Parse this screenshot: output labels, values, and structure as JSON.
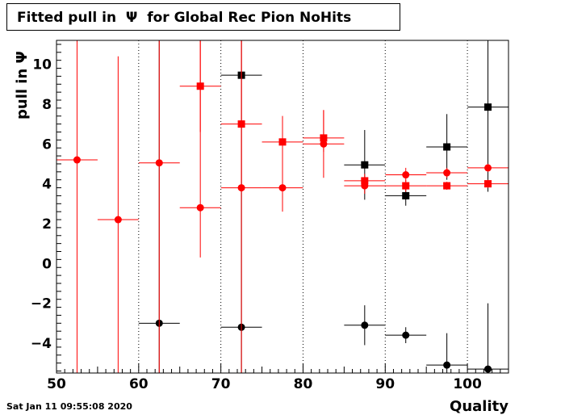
{
  "title": "Fitted pull in  Ψ  for Global Rec Pion NoHits",
  "timestamp": "Sat Jan 11 09:55:08 2020",
  "colors": {
    "black": "#000000",
    "red": "#ff0000"
  },
  "chart_data": {
    "type": "scatter",
    "title": "Fitted pull in  Ψ  for Global Rec Pion NoHits",
    "xlabel": "Quality",
    "ylabel": "pull in  Ψ",
    "xlim": [
      50,
      105
    ],
    "ylim": [
      -5.5,
      11.2
    ],
    "xticks": [
      50,
      60,
      70,
      80,
      90,
      100
    ],
    "xtick_labels": [
      "50",
      "60",
      "70",
      "80",
      "90",
      "100"
    ],
    "yticks": [
      -4,
      -2,
      0,
      2,
      4,
      6,
      8,
      10
    ],
    "ytick_labels": [
      "−4",
      "−2",
      "0",
      "2",
      "4",
      "6",
      "8",
      "10"
    ],
    "grid": true,
    "series": [
      {
        "color": "#000000",
        "marker": "square",
        "points": [
          {
            "x": 72.5,
            "y": 9.45,
            "xerr": 2.5,
            "ylo": -5.5,
            "yhi": 11.2
          },
          {
            "x": 87.5,
            "y": 4.95,
            "xerr": 2.5,
            "ylo": 3.2,
            "yhi": 6.7
          },
          {
            "x": 92.5,
            "y": 3.4,
            "xerr": 2.5,
            "ylo": 2.9,
            "yhi": 3.9
          },
          {
            "x": 97.5,
            "y": 5.85,
            "xerr": 2.5,
            "ylo": 4.2,
            "yhi": 7.5
          },
          {
            "x": 102.5,
            "y": 7.85,
            "xerr": 2.5,
            "ylo": 3.6,
            "yhi": 11.2
          }
        ]
      },
      {
        "color": "#000000",
        "marker": "circle",
        "points": [
          {
            "x": 62.5,
            "y": -3.0,
            "xerr": 2.5,
            "ylo": -5.5,
            "yhi": 11.2
          },
          {
            "x": 72.5,
            "y": -3.2,
            "xerr": 2.5,
            "ylo": -5.5,
            "yhi": 11.2
          },
          {
            "x": 87.5,
            "y": -3.1,
            "xerr": 2.5,
            "ylo": -4.1,
            "yhi": -2.1
          },
          {
            "x": 92.5,
            "y": -3.6,
            "xerr": 2.5,
            "ylo": -4.0,
            "yhi": -3.2
          },
          {
            "x": 97.5,
            "y": -5.1,
            "xerr": 2.5,
            "ylo": -5.5,
            "yhi": -3.5
          },
          {
            "x": 102.5,
            "y": -5.3,
            "xerr": 2.5,
            "ylo": -5.5,
            "yhi": -2.0
          }
        ]
      },
      {
        "color": "#ff0000",
        "marker": "square",
        "points": [
          {
            "x": 67.5,
            "y": 8.9,
            "xerr": 2.5,
            "ylo": 6.6,
            "yhi": 11.2
          },
          {
            "x": 72.5,
            "y": 7.0,
            "xerr": 2.5,
            "ylo": 3.8,
            "yhi": 11.2
          },
          {
            "x": 77.5,
            "y": 6.1,
            "xerr": 2.5,
            "ylo": 4.8,
            "yhi": 7.4
          },
          {
            "x": 82.5,
            "y": 6.3,
            "xerr": 2.5,
            "ylo": 5.6,
            "yhi": 7.7
          },
          {
            "x": 87.5,
            "y": 4.15,
            "xerr": 2.5,
            "ylo": 3.8,
            "yhi": 4.5
          },
          {
            "x": 92.5,
            "y": 3.9,
            "xerr": 2.5,
            "ylo": 3.6,
            "yhi": 4.2
          },
          {
            "x": 97.5,
            "y": 3.9,
            "xerr": 2.5,
            "ylo": 3.7,
            "yhi": 4.1
          },
          {
            "x": 102.5,
            "y": 4.0,
            "xerr": 2.5,
            "ylo": 3.8,
            "yhi": 4.2
          }
        ]
      },
      {
        "color": "#ff0000",
        "marker": "circle",
        "points": [
          {
            "x": 52.5,
            "y": 5.2,
            "xerr": 2.5,
            "ylo": -5.5,
            "yhi": 11.2
          },
          {
            "x": 57.5,
            "y": 2.2,
            "xerr": 2.5,
            "ylo": -5.5,
            "yhi": 10.4
          },
          {
            "x": 62.5,
            "y": 5.05,
            "xerr": 2.5,
            "ylo": -5.5,
            "yhi": 11.2
          },
          {
            "x": 67.5,
            "y": 2.8,
            "xerr": 2.5,
            "ylo": 0.3,
            "yhi": 11.2
          },
          {
            "x": 72.5,
            "y": 3.8,
            "xerr": 2.5,
            "ylo": -5.5,
            "yhi": 11.2
          },
          {
            "x": 77.5,
            "y": 3.8,
            "xerr": 2.5,
            "ylo": 2.6,
            "yhi": 7.4
          },
          {
            "x": 82.5,
            "y": 6.0,
            "xerr": 2.5,
            "ylo": 4.3,
            "yhi": 7.7
          },
          {
            "x": 87.5,
            "y": 3.9,
            "xerr": 2.5,
            "ylo": 3.5,
            "yhi": 4.3
          },
          {
            "x": 92.5,
            "y": 4.45,
            "xerr": 2.5,
            "ylo": 4.1,
            "yhi": 4.8
          },
          {
            "x": 97.5,
            "y": 4.55,
            "xerr": 2.5,
            "ylo": 4.3,
            "yhi": 4.8
          },
          {
            "x": 102.5,
            "y": 4.8,
            "xerr": 2.5,
            "ylo": 4.6,
            "yhi": 5.0
          }
        ]
      }
    ]
  }
}
